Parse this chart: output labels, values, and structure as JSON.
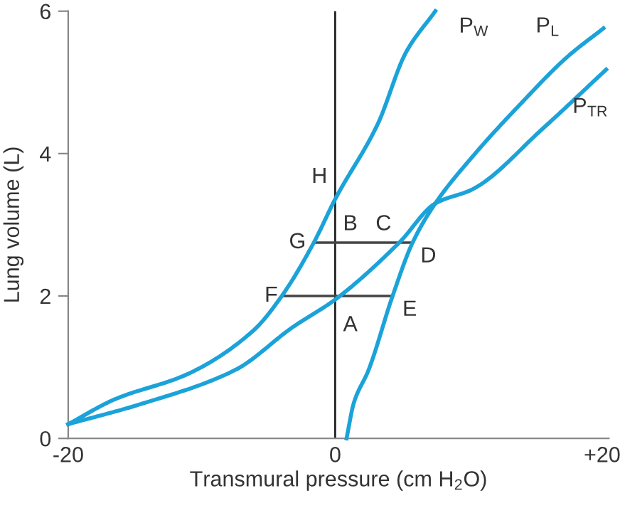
{
  "chart_data": {
    "type": "line",
    "xlabel": "Transmural pressure (cm H$_{2}$O)",
    "ylabel": "Lung volume (L)",
    "xlim": [
      -20,
      20.5
    ],
    "ylim": [
      0,
      6
    ],
    "xticks": [
      -20,
      0,
      {
        "value": 20,
        "label": "+20"
      }
    ],
    "yticks": [
      0,
      2,
      4,
      6
    ],
    "grid": false,
    "legend": false,
    "marker": "none",
    "line_style": "solid",
    "series": [
      {
        "name": "P$_{W}$",
        "color": "#1ba3d9",
        "x": [
          -20,
          -16.5,
          -11.1,
          -6.1,
          -4.0,
          -1.6,
          0,
          3.2,
          5.3,
          7.5
        ],
        "values": [
          0.2,
          0.55,
          0.9,
          1.52,
          2.0,
          2.75,
          3.36,
          4.42,
          5.42,
          6.0
        ]
      },
      {
        "name": "P$_{L}$",
        "color": "#1ba3d9",
        "x": [
          0.85,
          1.4,
          2.5,
          4.3,
          5.8,
          7.5,
          10.3,
          13.9,
          17.4,
          20.1
        ],
        "values": [
          0,
          0.5,
          0.96,
          2.0,
          2.75,
          3.3,
          3.96,
          4.7,
          5.36,
          5.76
        ]
      },
      {
        "name": "P$_{TR}$",
        "color": "#1ba3d9",
        "x": [
          -20,
          -14.6,
          -7.5,
          -3.2,
          0,
          4.8,
          7.5,
          10.3,
          15.6,
          20.3
        ],
        "values": [
          0.2,
          0.48,
          0.96,
          1.56,
          1.95,
          2.75,
          3.3,
          3.5,
          4.36,
          5.18
        ]
      },
      {
        "color": "#444444",
        "x": [
          -4.0,
          4.3
        ],
        "values": [
          2.0,
          2.0
        ]
      },
      {
        "color": "#444444",
        "x": [
          -1.6,
          5.8
        ],
        "values": [
          2.75,
          2.75
        ]
      }
    ],
    "ref_lines": [
      {
        "axis": "x",
        "value": 0,
        "color": "#222222"
      }
    ],
    "annotations": [
      {
        "text": "A",
        "x": 0,
        "y": 1.95
      },
      {
        "text": "B",
        "x": 0,
        "y": 2.75
      },
      {
        "text": "C",
        "x": 4.8,
        "y": 2.75
      },
      {
        "text": "D",
        "x": 5.8,
        "y": 2.75
      },
      {
        "text": "E",
        "x": 4.3,
        "y": 2.0
      },
      {
        "text": "F",
        "x": -4.0,
        "y": 2.0
      },
      {
        "text": "G",
        "x": -1.6,
        "y": 2.75
      },
      {
        "text": "H",
        "x": 0,
        "y": 3.36
      }
    ]
  }
}
